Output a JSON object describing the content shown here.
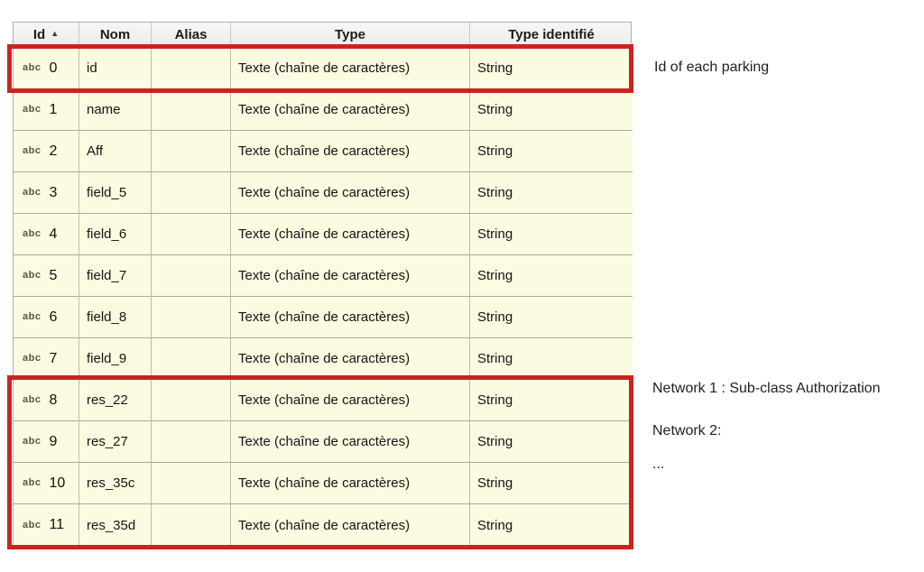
{
  "table": {
    "headers": {
      "id": "Id",
      "nom": "Nom",
      "alias": "Alias",
      "type": "Type",
      "type_identifie": "Type identifié"
    },
    "sort_icon": "▲",
    "text_type_icon": "abc",
    "rows": [
      {
        "id": "0",
        "nom": "id",
        "alias": "",
        "type": "Texte (chaîne de caractères)",
        "type_identifie": "String"
      },
      {
        "id": "1",
        "nom": "name",
        "alias": "",
        "type": "Texte (chaîne de caractères)",
        "type_identifie": "String"
      },
      {
        "id": "2",
        "nom": "Aff",
        "alias": "",
        "type": "Texte (chaîne de caractères)",
        "type_identifie": "String"
      },
      {
        "id": "3",
        "nom": "field_5",
        "alias": "",
        "type": "Texte (chaîne de caractères)",
        "type_identifie": "String"
      },
      {
        "id": "4",
        "nom": "field_6",
        "alias": "",
        "type": "Texte (chaîne de caractères)",
        "type_identifie": "String"
      },
      {
        "id": "5",
        "nom": "field_7",
        "alias": "",
        "type": "Texte (chaîne de caractères)",
        "type_identifie": "String"
      },
      {
        "id": "6",
        "nom": "field_8",
        "alias": "",
        "type": "Texte (chaîne de caractères)",
        "type_identifie": "String"
      },
      {
        "id": "7",
        "nom": "field_9",
        "alias": "",
        "type": "Texte (chaîne de caractères)",
        "type_identifie": "String"
      },
      {
        "id": "8",
        "nom": "res_22",
        "alias": "",
        "type": "Texte (chaîne de caractères)",
        "type_identifie": "String"
      },
      {
        "id": "9",
        "nom": "res_27",
        "alias": "",
        "type": "Texte (chaîne de caractères)",
        "type_identifie": "String"
      },
      {
        "id": "10",
        "nom": "res_35c",
        "alias": "",
        "type": "Texte (chaîne de caractères)",
        "type_identifie": "String"
      },
      {
        "id": "11",
        "nom": "res_35d",
        "alias": "",
        "type": "Texte (chaîne de caractères)",
        "type_identifie": "String"
      }
    ]
  },
  "annotations": {
    "parking": "Id of each parking",
    "network1": "Network 1 : Sub-class Authorization",
    "network2": "Network 2:",
    "ellipsis": "..."
  },
  "colors": {
    "highlight_red": "#cb2320",
    "row_background": "#fbfbe1",
    "header_background": "#f0f0f0"
  }
}
